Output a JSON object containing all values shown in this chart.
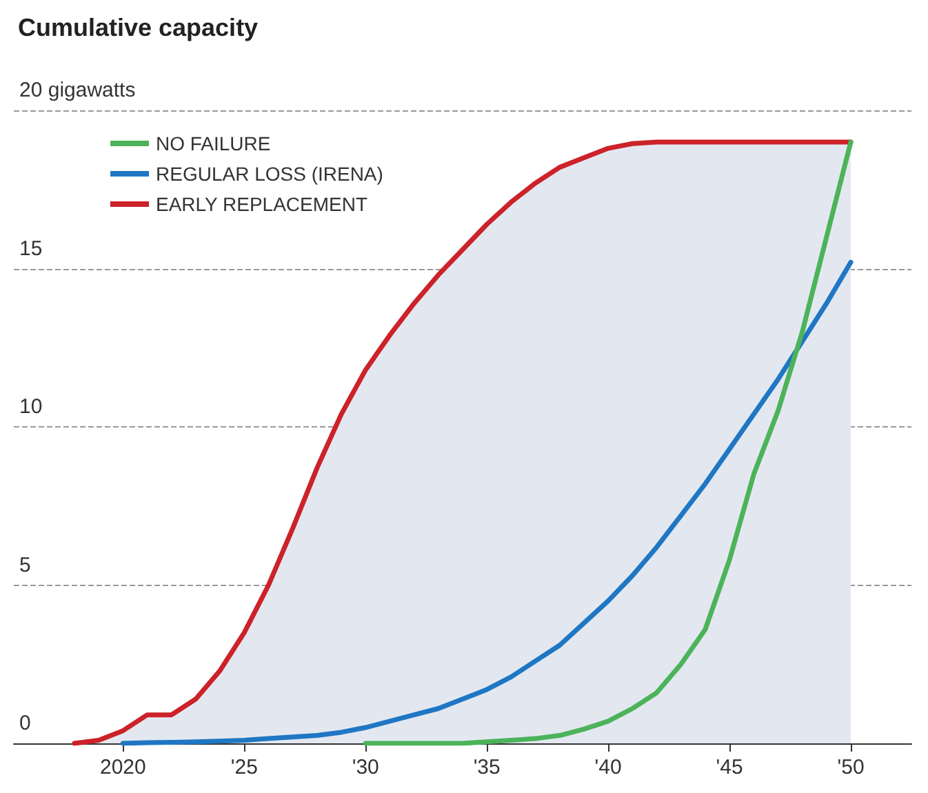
{
  "chart_data": {
    "type": "line",
    "title": "Cumulative capacity",
    "x": [
      2018,
      2019,
      2020,
      2021,
      2022,
      2023,
      2024,
      2025,
      2026,
      2027,
      2028,
      2029,
      2030,
      2031,
      2032,
      2033,
      2034,
      2035,
      2036,
      2037,
      2038,
      2039,
      2040,
      2041,
      2042,
      2043,
      2044,
      2045,
      2046,
      2047,
      2048,
      2049,
      2050
    ],
    "series": [
      {
        "name": "NO FAILURE",
        "color": "#4cb35a",
        "values": [
          null,
          null,
          null,
          null,
          null,
          null,
          null,
          null,
          null,
          null,
          null,
          null,
          0,
          0,
          0,
          0,
          0,
          0.05,
          0.1,
          0.15,
          0.25,
          0.45,
          0.7,
          1.1,
          1.6,
          2.5,
          3.6,
          5.8,
          8.5,
          10.5,
          13,
          16,
          19
        ]
      },
      {
        "name": "REGULAR LOSS (IRENA)",
        "color": "#1f77c4",
        "values": [
          null,
          null,
          0,
          0.02,
          0.03,
          0.05,
          0.07,
          0.1,
          0.15,
          0.2,
          0.25,
          0.35,
          0.5,
          0.7,
          0.9,
          1.1,
          1.4,
          1.7,
          2.1,
          2.6,
          3.1,
          3.8,
          4.5,
          5.3,
          6.2,
          7.2,
          8.2,
          9.3,
          10.4,
          11.5,
          12.7,
          13.9,
          15.2
        ]
      },
      {
        "name": "EARLY REPLACEMENT",
        "color": "#cc2229",
        "type": "area",
        "values": [
          0,
          0.1,
          0.4,
          0.9,
          0.9,
          1.4,
          2.3,
          3.5,
          5,
          6.8,
          8.7,
          10.4,
          11.8,
          12.9,
          13.9,
          14.8,
          15.6,
          16.4,
          17.1,
          17.7,
          18.2,
          18.5,
          18.8,
          18.95,
          19,
          19,
          19,
          19,
          19,
          19,
          19,
          19,
          19
        ]
      }
    ],
    "xlim": [
      2015.5,
      2052.5
    ],
    "xticks": [
      {
        "value": 2020,
        "label": "2020"
      },
      {
        "value": 2025,
        "label": "'25"
      },
      {
        "value": 2030,
        "label": "'30"
      },
      {
        "value": 2035,
        "label": "'35"
      },
      {
        "value": 2040,
        "label": "'40"
      },
      {
        "value": 2045,
        "label": "'45"
      },
      {
        "value": 2050,
        "label": "'50"
      }
    ],
    "ylim": [
      0,
      20
    ],
    "yticks": [
      0,
      5,
      10,
      15,
      {
        "value": 20,
        "label": "20 gigawatts"
      }
    ],
    "grid": "y",
    "legend": "top left",
    "marker": "none",
    "line_style": "solid"
  }
}
